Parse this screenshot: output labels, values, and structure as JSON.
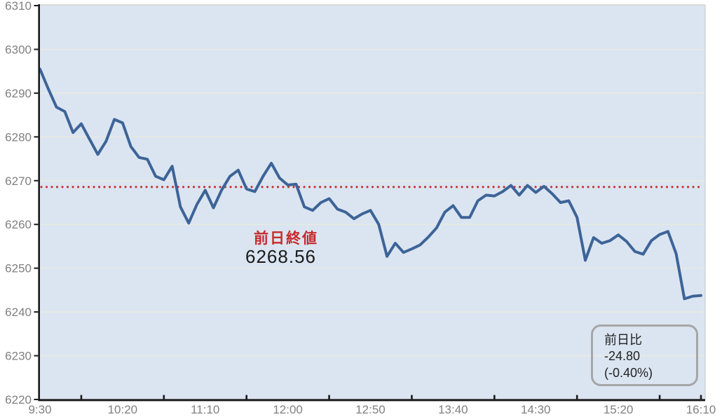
{
  "chart_data": {
    "type": "line",
    "title": "",
    "x_axis": {
      "start_time": "9:30",
      "end_time": "16:10",
      "interval_minutes": 5,
      "total_minutes": 400,
      "tick_labels": [
        "9:30",
        "10:20",
        "11:10",
        "12:00",
        "12:50",
        "13:40",
        "14:30",
        "15:20",
        "16:10"
      ],
      "label_every_minutes": 50,
      "minor_tick_every_minutes": 25
    },
    "y_axis": {
      "min": 6220,
      "max": 6310,
      "tick_step": 10,
      "tick_labels": [
        "6220",
        "6230",
        "6240",
        "6250",
        "6260",
        "6270",
        "6280",
        "6290",
        "6300",
        "6310"
      ]
    },
    "grid": true,
    "legend": "none",
    "series": [
      {
        "name": "intraday-price",
        "color": "#3d6498",
        "values": [
          6295.5,
          6291.0,
          6286.8,
          6285.8,
          6281.0,
          6283.0,
          6279.5,
          6276.0,
          6279.0,
          6284.0,
          6283.2,
          6277.8,
          6275.3,
          6274.9,
          6271.0,
          6270.2,
          6273.3,
          6264.0,
          6260.3,
          6264.6,
          6267.8,
          6263.8,
          6267.9,
          6271.0,
          6272.4,
          6268.1,
          6267.5,
          6271.0,
          6274.0,
          6270.6,
          6269.0,
          6269.2,
          6264.0,
          6263.2,
          6265.0,
          6265.9,
          6263.5,
          6262.8,
          6261.3,
          6262.4,
          6263.2,
          6260.0,
          6252.7,
          6255.7,
          6253.6,
          6254.4,
          6255.3,
          6257.1,
          6259.2,
          6262.8,
          6264.3,
          6261.6,
          6261.6,
          6265.4,
          6266.7,
          6266.5,
          6267.5,
          6268.9,
          6266.7,
          6268.9,
          6267.3,
          6268.7,
          6267.0,
          6265.0,
          6265.4,
          6261.6,
          6251.8,
          6257.0,
          6255.7,
          6256.3,
          6257.6,
          6256.1,
          6253.8,
          6253.2,
          6256.3,
          6257.7,
          6258.4,
          6253.3,
          6243.0,
          6243.6,
          6243.76
        ]
      }
    ],
    "reference_line": {
      "label": "前日終値",
      "value": 6268.56,
      "color": "#c43131",
      "style": "dotted"
    }
  },
  "annotations": {
    "prev_close_label": "前日終値",
    "prev_close_value": "6268.56",
    "change_box": {
      "title": "前日比",
      "value": "-24.80",
      "percent": "(-0.40%)"
    }
  },
  "colors": {
    "plot_background": "#dbe5f1",
    "grid_line": "#e7e9e3",
    "axis": "#1a1a1a",
    "tick_label": "#808080",
    "line": "#3d6498",
    "reference": "#c43131",
    "annotation_red": "#c62b2b",
    "annotation_text": "#1a1a1a",
    "box_border": "#a6a6a6"
  }
}
